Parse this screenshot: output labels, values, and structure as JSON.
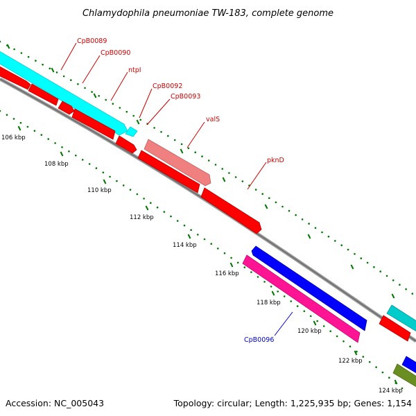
{
  "title": "Chlamydophila pneumoniae TW-183, complete genome",
  "footer": {
    "accession": "Accession: NC_005043",
    "summary": "Topology: circular; Length: 1,225,935 bp; Genes: 1,154"
  },
  "colors": {
    "backbone": "#808080",
    "tick": "#007700",
    "label_forward": "#cc0000",
    "label_reverse": "#0000cc",
    "cyan": "#00ffff",
    "red": "#ff0000",
    "salmon": "#f08080",
    "blue": "#0000ff",
    "magenta": "#ff1493",
    "olive": "#6b8e23"
  },
  "ticks": [
    "106 kbp",
    "108 kbp",
    "110 kbp",
    "112 kbp",
    "114 kbp",
    "116 kbp",
    "118 kbp",
    "120 kbp",
    "122 kbp",
    "124 kbp"
  ],
  "gene_labels": [
    {
      "text": "CpB0089",
      "color": "#cc0000"
    },
    {
      "text": "CpB0090",
      "color": "#cc0000"
    },
    {
      "text": "ntpI",
      "color": "#cc0000"
    },
    {
      "text": "CpB0092",
      "color": "#cc0000"
    },
    {
      "text": "CpB0093",
      "color": "#cc0000"
    },
    {
      "text": "valS",
      "color": "#cc0000"
    },
    {
      "text": "pknD",
      "color": "#cc0000"
    },
    {
      "text": "CpB0096",
      "color": "#0000cc"
    }
  ]
}
